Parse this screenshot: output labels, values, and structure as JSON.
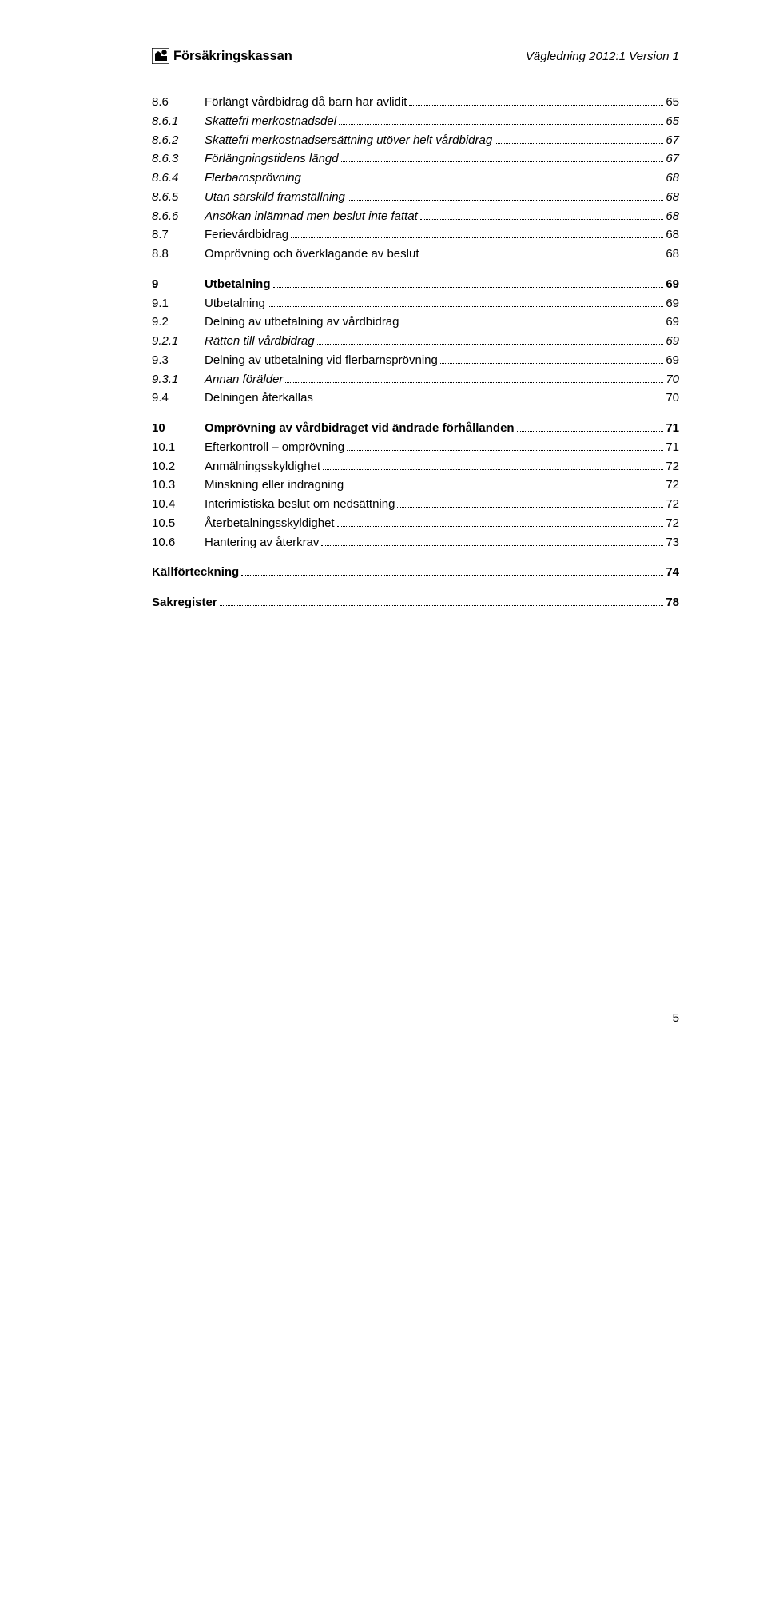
{
  "header": {
    "brand": "Försäkringskassan",
    "title": "Vägledning 2012:1 Version 1"
  },
  "toc": [
    {
      "num": "8.6",
      "label": "Förlängt vårdbidrag då barn har avlidit",
      "page": "65",
      "style": ""
    },
    {
      "num": "8.6.1",
      "label": "Skattefri merkostnadsdel",
      "page": "65",
      "style": "italic"
    },
    {
      "num": "8.6.2",
      "label": "Skattefri merkostnadsersättning utöver helt vårdbidrag",
      "page": "67",
      "style": "italic"
    },
    {
      "num": "8.6.3",
      "label": "Förlängningstidens längd",
      "page": "67",
      "style": "italic"
    },
    {
      "num": "8.6.4",
      "label": "Flerbarnsprövning",
      "page": "68",
      "style": "italic"
    },
    {
      "num": "8.6.5",
      "label": "Utan särskild framställning",
      "page": "68",
      "style": "italic"
    },
    {
      "num": "8.6.6",
      "label": "Ansökan inlämnad men beslut inte fattat",
      "page": "68",
      "style": "italic"
    },
    {
      "num": "8.7",
      "label": "Ferievårdbidrag",
      "page": "68",
      "style": ""
    },
    {
      "num": "8.8",
      "label": "Omprövning och överklagande av beslut",
      "page": "68",
      "style": ""
    },
    {
      "gap": true
    },
    {
      "num": "9",
      "label": "Utbetalning",
      "page": "69",
      "style": "bold"
    },
    {
      "num": "9.1",
      "label": "Utbetalning",
      "page": "69",
      "style": ""
    },
    {
      "num": "9.2",
      "label": "Delning av utbetalning av vårdbidrag",
      "page": "69",
      "style": ""
    },
    {
      "num": "9.2.1",
      "label": "Rätten till vårdbidrag",
      "page": "69",
      "style": "italic"
    },
    {
      "num": "9.3",
      "label": "Delning av utbetalning vid flerbarnsprövning",
      "page": "69",
      "style": ""
    },
    {
      "num": "9.3.1",
      "label": "Annan förälder",
      "page": "70",
      "style": "italic"
    },
    {
      "num": "9.4",
      "label": "Delningen återkallas",
      "page": "70",
      "style": ""
    },
    {
      "gap": true
    },
    {
      "num": "10",
      "label": "Omprövning av vårdbidraget vid ändrade förhållanden",
      "page": "71",
      "style": "bold"
    },
    {
      "num": "10.1",
      "label": "Efterkontroll – omprövning",
      "page": "71",
      "style": ""
    },
    {
      "num": "10.2",
      "label": "Anmälningsskyldighet",
      "page": "72",
      "style": ""
    },
    {
      "num": "10.3",
      "label": "Minskning eller indragning",
      "page": "72",
      "style": ""
    },
    {
      "num": "10.4",
      "label": "Interimistiska beslut om nedsättning",
      "page": "72",
      "style": ""
    },
    {
      "num": "10.5",
      "label": "Återbetalningsskyldighet",
      "page": "72",
      "style": ""
    },
    {
      "num": "10.6",
      "label": "Hantering av återkrav",
      "page": "73",
      "style": ""
    },
    {
      "gap": true
    },
    {
      "num": "",
      "label": "Källförteckning",
      "page": "74",
      "style": "bold nonum"
    },
    {
      "gap": true
    },
    {
      "num": "",
      "label": "Sakregister",
      "page": "78",
      "style": "bold nonum"
    }
  ],
  "page_number": "5"
}
